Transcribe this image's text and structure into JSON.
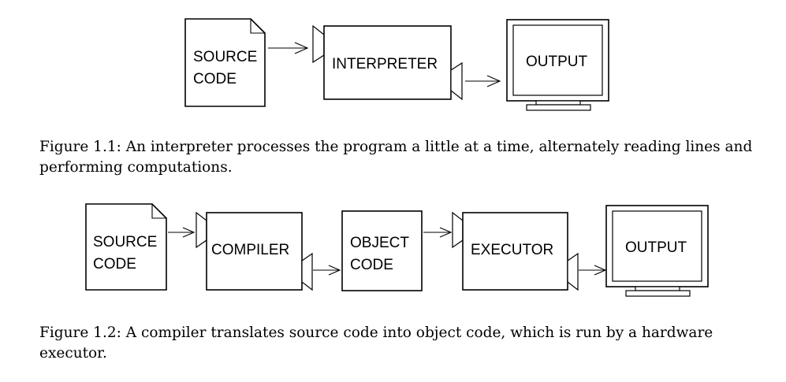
{
  "figure1": {
    "source_line1": "SOURCE",
    "source_line2": "CODE",
    "interpreter": "INTERPRETER",
    "output": "OUTPUT",
    "caption": "Figure 1.1: An interpreter processes the program a little at a time, alternately reading lines and performing computations."
  },
  "figure2": {
    "source_line1": "SOURCE",
    "source_line2": "CODE",
    "compiler": "COMPILER",
    "object_line1": "OBJECT",
    "object_line2": "CODE",
    "executor": "EXECUTOR",
    "output": "OUTPUT",
    "caption": "Figure 1.2: A compiler translates source code into object code, which is run by a hardware executor."
  }
}
